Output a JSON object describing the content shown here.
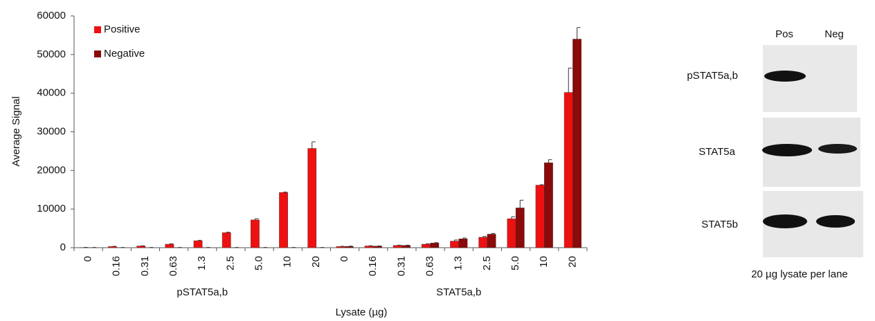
{
  "chart_data": {
    "type": "bar",
    "y_label": "Average Signal",
    "x_label": "Lysate (µg)",
    "categories": [
      "0",
      "0.16",
      "0.31",
      "0.63",
      "1.3",
      "2.5",
      "5.0",
      "10",
      "20",
      "0",
      "0.16",
      "0.31",
      "0.63",
      "1.3",
      "2.5",
      "5.0",
      "10",
      "20"
    ],
    "group_labels": [
      "pSTAT5a,b",
      "STAT5a,b"
    ],
    "series": [
      {
        "name": "Positive",
        "color": "#ee1111",
        "values": [
          50,
          300,
          450,
          900,
          1800,
          3900,
          7200,
          14300,
          25700,
          300,
          450,
          600,
          900,
          1700,
          2700,
          7500,
          16200,
          40200
        ],
        "errors": [
          50,
          50,
          50,
          100,
          100,
          100,
          300,
          100,
          1700,
          50,
          50,
          50,
          100,
          300,
          200,
          500,
          100,
          6300
        ]
      },
      {
        "name": "Negative",
        "color": "#8b0a0a",
        "values": [
          50,
          50,
          50,
          50,
          50,
          50,
          50,
          50,
          50,
          350,
          400,
          600,
          1200,
          2300,
          3500,
          10300,
          22000,
          54000
        ],
        "errors": [
          20,
          20,
          20,
          20,
          20,
          20,
          20,
          20,
          20,
          50,
          50,
          50,
          100,
          200,
          200,
          2000,
          800,
          3000
        ]
      }
    ],
    "ylim": [
      0,
      60000
    ],
    "yticks": [
      0,
      10000,
      20000,
      30000,
      40000,
      50000,
      60000
    ],
    "legend": "upper-left"
  },
  "blot": {
    "lanes": [
      "Pos",
      "Neg"
    ],
    "rows": [
      "pSTAT5a,b",
      "STAT5a",
      "STAT5b"
    ],
    "caption": "20 µg lysate per lane"
  }
}
